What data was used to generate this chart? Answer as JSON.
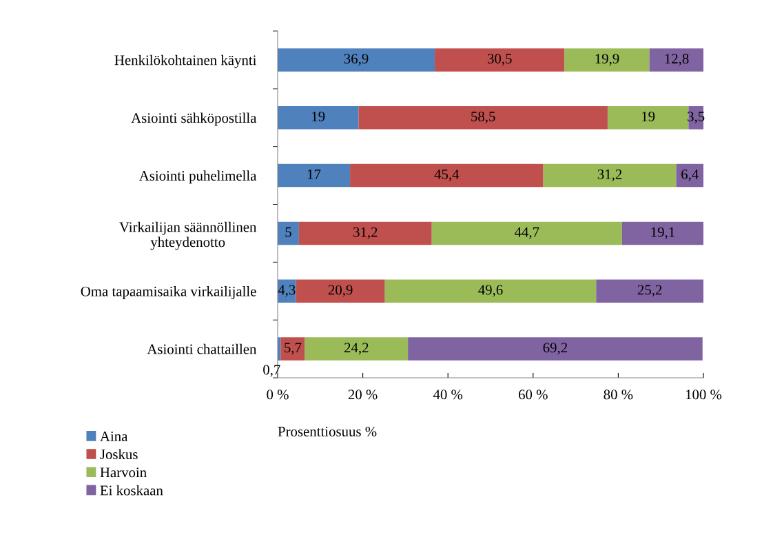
{
  "chart_data": {
    "type": "bar",
    "orientation": "horizontal",
    "stacked": true,
    "categories": [
      "Henkilökohtainen käynti",
      "Asiointi sähköpostilla",
      "Asiointi puhelimella",
      "Virkailijan säännöllinen\nyhteydenotto",
      "Oma tapaamisaika virkailijalle",
      "Asiointi chattaillen"
    ],
    "series": [
      {
        "name": "Aina",
        "color": "#4f81bd",
        "values": [
          36.9,
          19,
          17,
          5,
          4.3,
          0.7
        ],
        "value_labels": [
          "36,9",
          "19",
          "17",
          "5",
          "4,3",
          "0,7"
        ]
      },
      {
        "name": "Joskus",
        "color": "#c0504d",
        "values": [
          30.5,
          58.5,
          45.4,
          31.2,
          20.9,
          5.7
        ],
        "value_labels": [
          "30,5",
          "58,5",
          "45,4",
          "31,2",
          "20,9",
          "5,7"
        ]
      },
      {
        "name": "Harvoin",
        "color": "#9bbb59",
        "values": [
          19.9,
          19,
          31.2,
          44.7,
          49.6,
          24.2
        ],
        "value_labels": [
          "19,9",
          "19",
          "31,2",
          "44,7",
          "49,6",
          "24,2"
        ]
      },
      {
        "name": "Ei koskaan",
        "color": "#8064a2",
        "values": [
          12.8,
          3.5,
          6.4,
          19.1,
          25.2,
          69.2
        ],
        "value_labels": [
          "12,8",
          "3,5",
          "6,4",
          "19,1",
          "25,2",
          "69,2"
        ]
      }
    ],
    "xlim": [
      0,
      100
    ],
    "xticks": [
      {
        "value": 0,
        "label": "0 %"
      },
      {
        "value": 20,
        "label": "20 %"
      },
      {
        "value": 40,
        "label": "40 %"
      },
      {
        "value": 60,
        "label": "60 %"
      },
      {
        "value": 80,
        "label": "80 %"
      },
      {
        "value": 100,
        "label": "100 %"
      }
    ],
    "xlabel": "Prosenttiosuus %",
    "legend": "bottom left",
    "grid": false
  }
}
